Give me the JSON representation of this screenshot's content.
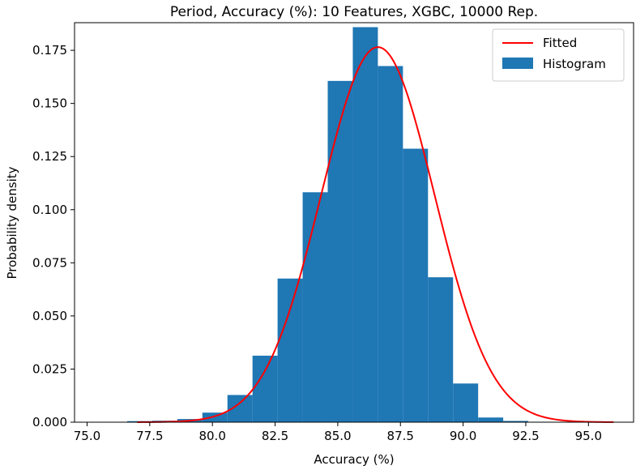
{
  "chart_data": {
    "type": "bar",
    "title": "Period, Accuracy (%): 10 Features, XGBC, 10000 Rep.",
    "xlabel": "Accuracy (%)",
    "ylabel": "Probability density",
    "xlim": [
      74.5,
      96.8
    ],
    "ylim": [
      0,
      0.188
    ],
    "xticks": [
      75.0,
      77.5,
      80.0,
      82.5,
      85.0,
      87.5,
      90.0,
      92.5,
      95.0
    ],
    "xtick_labels": [
      "75.0",
      "77.5",
      "80.0",
      "82.5",
      "85.0",
      "87.5",
      "90.0",
      "92.5",
      "95.0"
    ],
    "yticks": [
      0.0,
      0.025,
      0.05,
      0.075,
      0.1,
      0.125,
      0.15,
      0.175
    ],
    "ytick_labels": [
      "0.000",
      "0.025",
      "0.050",
      "0.075",
      "0.100",
      "0.125",
      "0.150",
      "0.175"
    ],
    "histogram": {
      "name": "Histogram",
      "color": "#1f77b4",
      "bin_edges": [
        76.6,
        77.6,
        78.6,
        79.6,
        80.6,
        81.6,
        82.6,
        83.6,
        84.6,
        85.6,
        86.6,
        87.6,
        88.6,
        89.6,
        90.6,
        91.6,
        92.6,
        93.6
      ],
      "values": [
        0.0005,
        0.0007,
        0.0015,
        0.0045,
        0.0128,
        0.0313,
        0.0676,
        0.1082,
        0.1606,
        0.1859,
        0.1676,
        0.1287,
        0.0682,
        0.0182,
        0.0022,
        0.0006,
        0.0002
      ]
    },
    "fitted": {
      "name": "Fitted",
      "color": "#ff0000",
      "distribution": "normal",
      "mean": 86.6,
      "std": 2.26,
      "x_range": [
        77.0,
        96.0
      ]
    },
    "legend": {
      "placement": "top-right",
      "entries": [
        "Fitted",
        "Histogram"
      ]
    },
    "grid": false
  }
}
